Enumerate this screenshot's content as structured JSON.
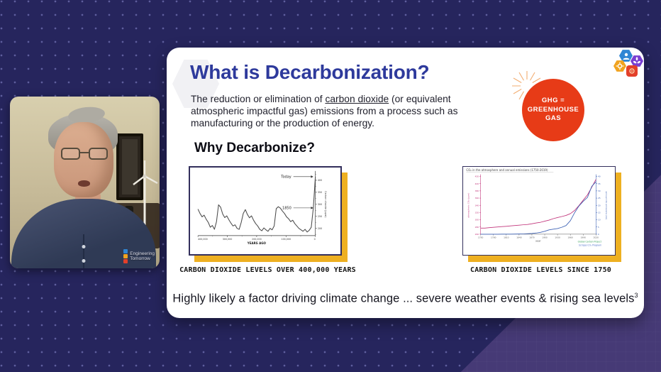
{
  "page": {
    "background": "#26255d",
    "diagonal_panel": "#463a76",
    "slide_background": "#ffffff",
    "accent_yellow": "#eeb021",
    "accent_red": "#e73b17",
    "title_blue": "#2e3a9c"
  },
  "webcam": {
    "watermark": {
      "line1": "Engineering",
      "line2": "Tomorrow"
    }
  },
  "slide": {
    "title": "What is Decarbonization?",
    "intro": {
      "pre": "The reduction or elimination of ",
      "underlined": "carbon dioxide",
      "post": " (or equivalent atmospheric impactful gas) emissions from a process such as manufacturing or the production of energy."
    },
    "why_heading": "Why Decarbonize?",
    "ghg_badge": {
      "line1": "GHG =",
      "line2": "GREENHOUSE",
      "line3": "GAS",
      "color": "#e73b17"
    },
    "bottom_note": {
      "text": "Highly likely a factor driving climate change ...  severe weather events & rising sea levels",
      "superscript": "3"
    }
  },
  "icons": {
    "logo_cluster": [
      "person-hexagon",
      "turbine-hexagon",
      "gear-hexagon",
      "camera-badge"
    ]
  },
  "chart_data": [
    {
      "type": "line",
      "caption": "CARBON DIOXIDE LEVELS OVER 400,000 YEARS",
      "xlabel": "YEARS AGO",
      "ylabel": "Carbon dioxide (ppm)",
      "xticks": [
        "400,000",
        "300,000",
        "200,000",
        "100,000",
        "0"
      ],
      "ylim": [
        170,
        430
      ],
      "yticks": [
        200,
        250,
        300,
        350,
        400
      ],
      "line_color": "#4d4d4d",
      "grid": false,
      "annotations": [
        {
          "label": "Today",
          "value": 415
        },
        {
          "label": "1850",
          "value": 285
        }
      ],
      "values": [
        280,
        262,
        248,
        255,
        238,
        225,
        205,
        212,
        196,
        228,
        298,
        288,
        260,
        245,
        252,
        236,
        222,
        210,
        215,
        200,
        196,
        225,
        262,
        278,
        258,
        244,
        252,
        234,
        220,
        210,
        196,
        190,
        202,
        194,
        188,
        200,
        194,
        210,
        282,
        290,
        284,
        272,
        262,
        248,
        240,
        228,
        234,
        220,
        210,
        200,
        194,
        188,
        196,
        185,
        192,
        205,
        285,
        415
      ]
    },
    {
      "type": "line",
      "title": "CO₂ in the atmosphere and annual emissions (1750-2019)",
      "caption": "CARBON DIOXIDE LEVELS SINCE 1750",
      "xlabel": "year",
      "xticks": [
        1750,
        1780,
        1810,
        1840,
        1870,
        1900,
        1930,
        1960,
        1990,
        2020
      ],
      "x_range": [
        1750,
        2020
      ],
      "grid": false,
      "source_line1": "Global Carbon Project",
      "source_line2": "Scripps CO₂ Program",
      "series": [
        {
          "name": "atmospheric CO₂ (ppm)",
          "color": "#c2367c",
          "axis": "left",
          "ylim": [
            260,
            420
          ],
          "yticks": [
            260,
            280,
            300,
            320,
            340,
            360,
            380,
            400,
            420
          ],
          "values": [
            277,
            277,
            278,
            279,
            280,
            281,
            282,
            283,
            284,
            285,
            286,
            287,
            289,
            291,
            293,
            296,
            299,
            303,
            306,
            309,
            312,
            317,
            326,
            339,
            354,
            369,
            390,
            412
          ]
        },
        {
          "name": "annual CO₂ emissions (Gt)",
          "color": "#3f63b5",
          "axis": "right",
          "ylim": [
            0,
            40
          ],
          "yticks": [
            0,
            5,
            10,
            15,
            20,
            25,
            30,
            35,
            40
          ],
          "values": [
            0.01,
            0.01,
            0.01,
            0.01,
            0.02,
            0.03,
            0.05,
            0.06,
            0.1,
            0.15,
            0.2,
            0.34,
            0.53,
            0.8,
            1.3,
            2.0,
            3.0,
            3.5,
            3.9,
            4.8,
            6.0,
            9.4,
            14.9,
            19.5,
            22.7,
            25.5,
            33.1,
            36.4
          ]
        }
      ]
    }
  ]
}
